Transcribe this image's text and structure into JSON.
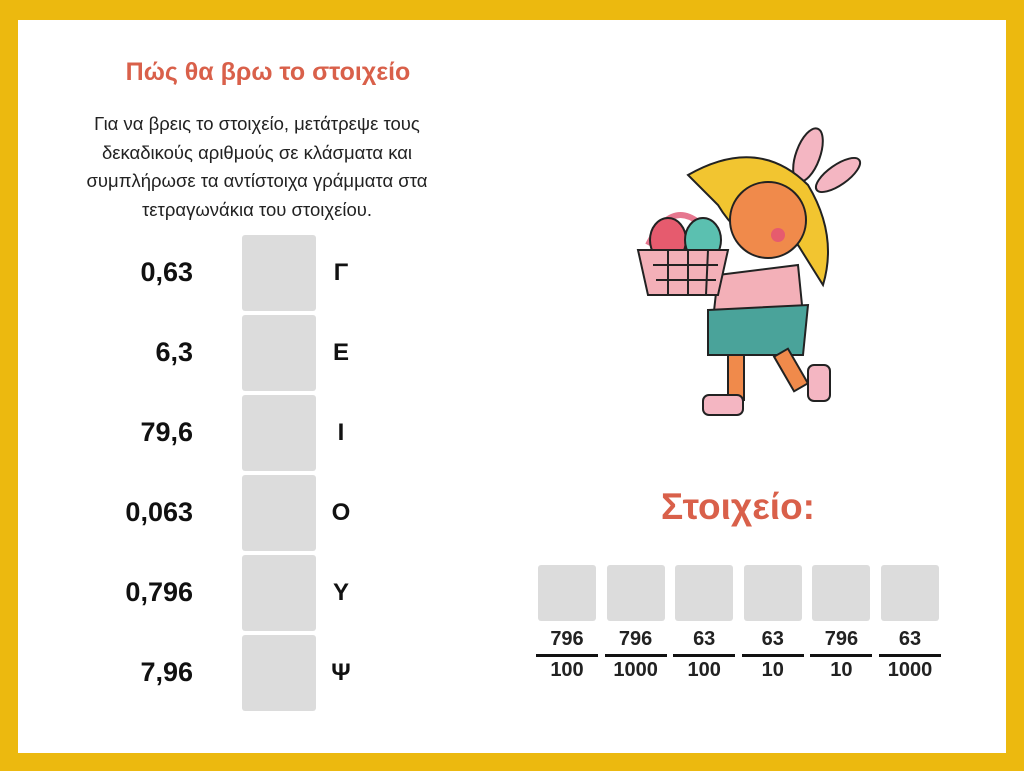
{
  "header": {
    "title": "Πώς θα βρω το στοιχείο",
    "instructions": "Για να βρεις το στοιχείο, μετάτρεψε τους δεκαδικούς αριθμούς σε κλάσματα και συμπλήρωσε τα αντίστοιχα γράμματα στα τετραγωνάκια του στοιχείου."
  },
  "rows": [
    {
      "number": "0,63",
      "letter": "Γ"
    },
    {
      "number": "6,3",
      "letter": "Ε"
    },
    {
      "number": "79,6",
      "letter": "Ι"
    },
    {
      "number": "0,063",
      "letter": "Ο"
    },
    {
      "number": "0,796",
      "letter": "Υ"
    },
    {
      "number": "7,96",
      "letter": "Ψ"
    }
  ],
  "answer": {
    "title": "Στοιχείο:",
    "fractions": [
      {
        "numerator": "796",
        "denominator": "100"
      },
      {
        "numerator": "796",
        "denominator": "1000"
      },
      {
        "numerator": "63",
        "denominator": "100"
      },
      {
        "numerator": "63",
        "denominator": "10"
      },
      {
        "numerator": "796",
        "denominator": "10"
      },
      {
        "numerator": "63",
        "denominator": "1000"
      }
    ]
  }
}
